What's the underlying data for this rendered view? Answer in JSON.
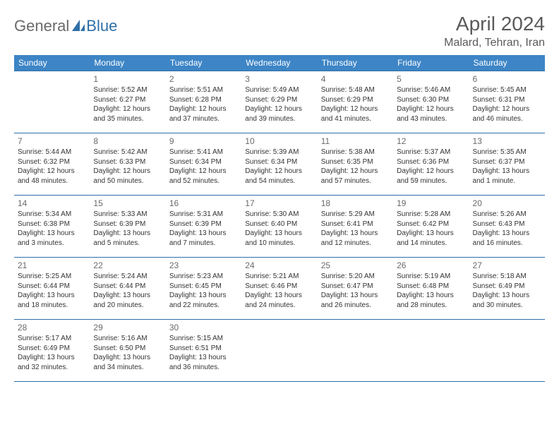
{
  "logo": {
    "text_gray": "General",
    "text_blue": "Blue"
  },
  "title": "April 2024",
  "location": "Malard, Tehran, Iran",
  "colors": {
    "header_bg": "#3d85c6",
    "header_text": "#ffffff",
    "border": "#2f6fa8",
    "body_text": "#333333",
    "title_text": "#5a5a5a",
    "logo_gray": "#6a6a6a",
    "logo_blue": "#2f6fa8",
    "page_bg": "#ffffff"
  },
  "typography": {
    "title_fontsize": 28,
    "location_fontsize": 16,
    "logo_fontsize": 22,
    "dayheader_fontsize": 12,
    "daynum_fontsize": 12,
    "cell_fontsize": 10
  },
  "layout": {
    "columns": 7,
    "rows": 5,
    "start_offset": 1
  },
  "day_headers": [
    "Sunday",
    "Monday",
    "Tuesday",
    "Wednesday",
    "Thursday",
    "Friday",
    "Saturday"
  ],
  "days": [
    {
      "n": 1,
      "sunrise": "5:52 AM",
      "sunset": "6:27 PM",
      "daylight": "12 hours and 35 minutes."
    },
    {
      "n": 2,
      "sunrise": "5:51 AM",
      "sunset": "6:28 PM",
      "daylight": "12 hours and 37 minutes."
    },
    {
      "n": 3,
      "sunrise": "5:49 AM",
      "sunset": "6:29 PM",
      "daylight": "12 hours and 39 minutes."
    },
    {
      "n": 4,
      "sunrise": "5:48 AM",
      "sunset": "6:29 PM",
      "daylight": "12 hours and 41 minutes."
    },
    {
      "n": 5,
      "sunrise": "5:46 AM",
      "sunset": "6:30 PM",
      "daylight": "12 hours and 43 minutes."
    },
    {
      "n": 6,
      "sunrise": "5:45 AM",
      "sunset": "6:31 PM",
      "daylight": "12 hours and 46 minutes."
    },
    {
      "n": 7,
      "sunrise": "5:44 AM",
      "sunset": "6:32 PM",
      "daylight": "12 hours and 48 minutes."
    },
    {
      "n": 8,
      "sunrise": "5:42 AM",
      "sunset": "6:33 PM",
      "daylight": "12 hours and 50 minutes."
    },
    {
      "n": 9,
      "sunrise": "5:41 AM",
      "sunset": "6:34 PM",
      "daylight": "12 hours and 52 minutes."
    },
    {
      "n": 10,
      "sunrise": "5:39 AM",
      "sunset": "6:34 PM",
      "daylight": "12 hours and 54 minutes."
    },
    {
      "n": 11,
      "sunrise": "5:38 AM",
      "sunset": "6:35 PM",
      "daylight": "12 hours and 57 minutes."
    },
    {
      "n": 12,
      "sunrise": "5:37 AM",
      "sunset": "6:36 PM",
      "daylight": "12 hours and 59 minutes."
    },
    {
      "n": 13,
      "sunrise": "5:35 AM",
      "sunset": "6:37 PM",
      "daylight": "13 hours and 1 minute."
    },
    {
      "n": 14,
      "sunrise": "5:34 AM",
      "sunset": "6:38 PM",
      "daylight": "13 hours and 3 minutes."
    },
    {
      "n": 15,
      "sunrise": "5:33 AM",
      "sunset": "6:39 PM",
      "daylight": "13 hours and 5 minutes."
    },
    {
      "n": 16,
      "sunrise": "5:31 AM",
      "sunset": "6:39 PM",
      "daylight": "13 hours and 7 minutes."
    },
    {
      "n": 17,
      "sunrise": "5:30 AM",
      "sunset": "6:40 PM",
      "daylight": "13 hours and 10 minutes."
    },
    {
      "n": 18,
      "sunrise": "5:29 AM",
      "sunset": "6:41 PM",
      "daylight": "13 hours and 12 minutes."
    },
    {
      "n": 19,
      "sunrise": "5:28 AM",
      "sunset": "6:42 PM",
      "daylight": "13 hours and 14 minutes."
    },
    {
      "n": 20,
      "sunrise": "5:26 AM",
      "sunset": "6:43 PM",
      "daylight": "13 hours and 16 minutes."
    },
    {
      "n": 21,
      "sunrise": "5:25 AM",
      "sunset": "6:44 PM",
      "daylight": "13 hours and 18 minutes."
    },
    {
      "n": 22,
      "sunrise": "5:24 AM",
      "sunset": "6:44 PM",
      "daylight": "13 hours and 20 minutes."
    },
    {
      "n": 23,
      "sunrise": "5:23 AM",
      "sunset": "6:45 PM",
      "daylight": "13 hours and 22 minutes."
    },
    {
      "n": 24,
      "sunrise": "5:21 AM",
      "sunset": "6:46 PM",
      "daylight": "13 hours and 24 minutes."
    },
    {
      "n": 25,
      "sunrise": "5:20 AM",
      "sunset": "6:47 PM",
      "daylight": "13 hours and 26 minutes."
    },
    {
      "n": 26,
      "sunrise": "5:19 AM",
      "sunset": "6:48 PM",
      "daylight": "13 hours and 28 minutes."
    },
    {
      "n": 27,
      "sunrise": "5:18 AM",
      "sunset": "6:49 PM",
      "daylight": "13 hours and 30 minutes."
    },
    {
      "n": 28,
      "sunrise": "5:17 AM",
      "sunset": "6:49 PM",
      "daylight": "13 hours and 32 minutes."
    },
    {
      "n": 29,
      "sunrise": "5:16 AM",
      "sunset": "6:50 PM",
      "daylight": "13 hours and 34 minutes."
    },
    {
      "n": 30,
      "sunrise": "5:15 AM",
      "sunset": "6:51 PM",
      "daylight": "13 hours and 36 minutes."
    }
  ],
  "labels": {
    "sunrise": "Sunrise:",
    "sunset": "Sunset:",
    "daylight": "Daylight:"
  }
}
